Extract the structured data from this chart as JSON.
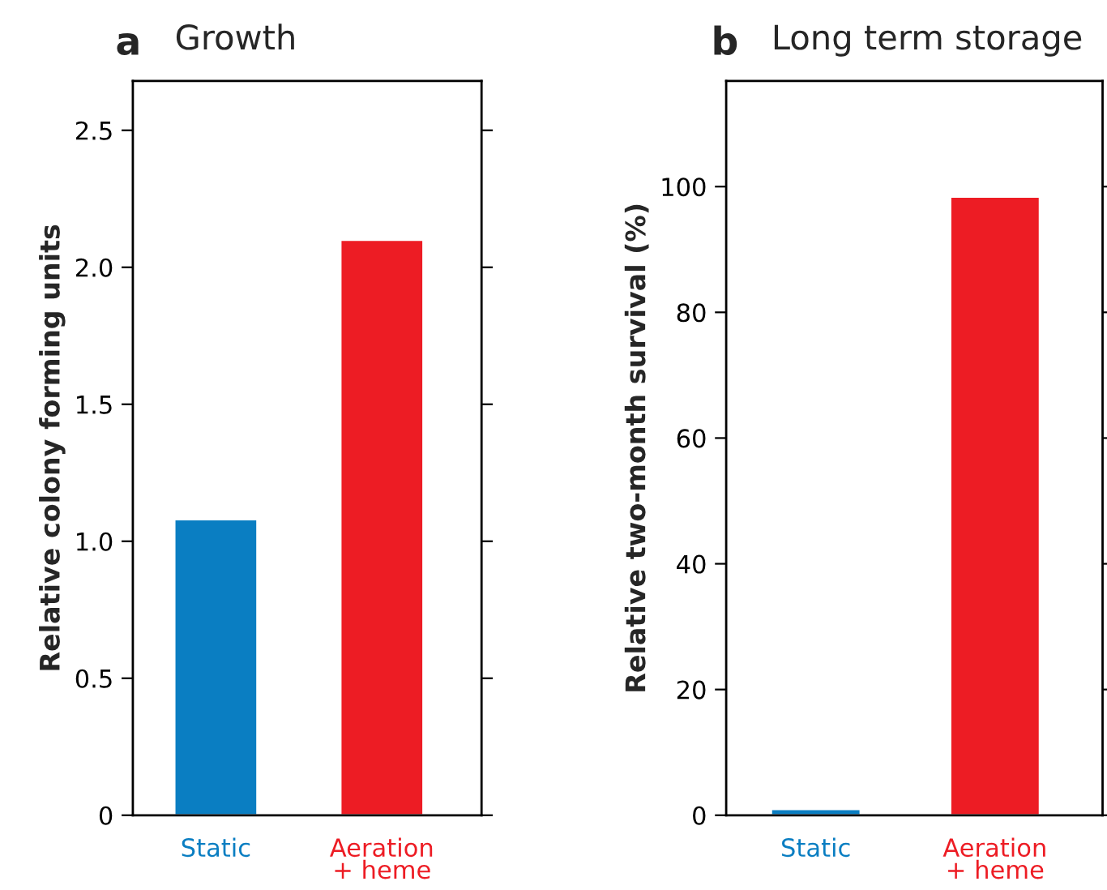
{
  "chart_data": [
    {
      "type": "bar",
      "title": "Growth",
      "annotations": [
        "a"
      ],
      "ylabel": "Relative colony forming units",
      "categories": [
        "Static",
        "Aeration\n+ heme"
      ],
      "values": [
        1.08,
        2.1
      ],
      "colors": [
        "#0a7ec2",
        "#ed1c24"
      ],
      "ylim": [
        0,
        2.68
      ],
      "yticks": [
        {
          "value": 0,
          "label": "0"
        },
        0.5,
        {
          "value": 1,
          "label": "1.0"
        },
        1.5,
        {
          "value": 2,
          "label": "2.0"
        },
        2.5
      ],
      "grid": false,
      "legend": false
    },
    {
      "type": "bar",
      "title": "Long term storage",
      "annotations": [
        "b"
      ],
      "ylabel": "Relative two-month survival (%)",
      "categories": [
        "Static",
        "Aeration\n+ heme"
      ],
      "values": [
        1,
        98.4
      ],
      "colors": [
        "#0a7ec2",
        "#ed1c24"
      ],
      "ylim": [
        0,
        116.8
      ],
      "yticks": [
        0,
        20,
        40,
        60,
        80,
        100
      ],
      "grid": false,
      "legend": false
    }
  ]
}
